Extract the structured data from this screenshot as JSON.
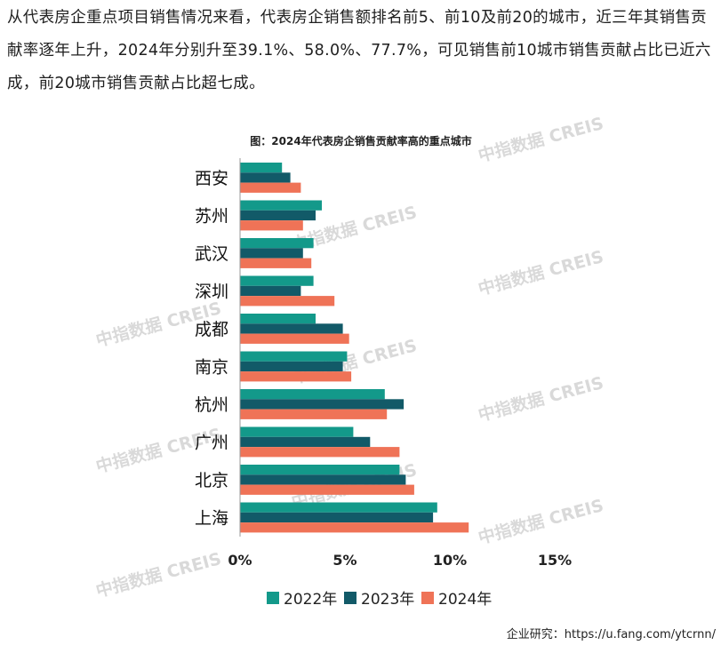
{
  "article": {
    "paragraph": "从代表房企重点项目销售情况来看，代表房企销售额排名前5、前10及前20的城市，近三年其销售贡献率逐年上升，2024年分别升至39.1%、58.0%、77.7%，可见销售前10城市销售贡献占比已近六成，前20城市销售贡献占比超七成。"
  },
  "source_note": "企业研究：https://u.fang.com/ytcrnn/",
  "watermark_text": "中指数据 CREIS",
  "colors": {
    "s2022": "#13998a",
    "s2023": "#125a68",
    "s2024": "#ef7357",
    "axis": "#9a9a9a",
    "watermark": "#d9d9d9"
  },
  "chart_data": {
    "type": "bar",
    "orientation": "horizontal",
    "title": "图：2024年代表房企销售贡献率高的重点城市",
    "categories": [
      "西安",
      "苏州",
      "武汉",
      "深圳",
      "成都",
      "南京",
      "杭州",
      "广州",
      "北京",
      "上海"
    ],
    "series": [
      {
        "name": "2022年",
        "values": [
          2.0,
          3.9,
          3.5,
          3.5,
          3.6,
          5.1,
          6.9,
          5.4,
          7.6,
          9.4
        ]
      },
      {
        "name": "2023年",
        "values": [
          2.4,
          3.6,
          3.0,
          2.9,
          4.9,
          4.9,
          7.8,
          6.2,
          7.9,
          9.2
        ]
      },
      {
        "name": "2024年",
        "values": [
          2.9,
          3.0,
          3.4,
          4.5,
          5.2,
          5.3,
          7.0,
          7.6,
          8.3,
          10.9
        ]
      }
    ],
    "x_ticks": [
      "0%",
      "5%",
      "10%",
      "15%"
    ],
    "xlim": [
      0,
      15
    ],
    "unit": "%",
    "legend_position": "bottom"
  }
}
